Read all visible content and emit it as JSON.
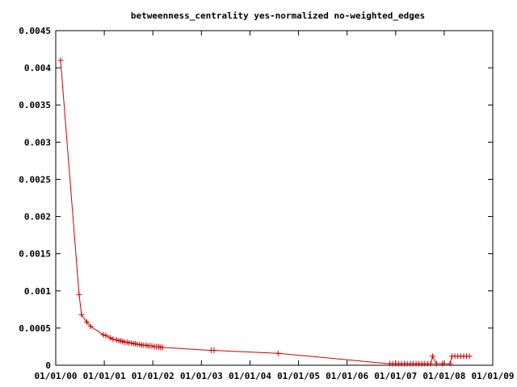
{
  "chart_data": {
    "type": "line",
    "title": "betweenness_centrality yes-normalized no-weighted_edges",
    "xlabel": "",
    "ylabel": "",
    "x_tick_labels": [
      "01/01/00",
      "01/01/01",
      "01/01/02",
      "01/01/03",
      "01/01/04",
      "01/01/05",
      "01/01/06",
      "01/01/07",
      "01/01/08",
      "01/01/09"
    ],
    "y_tick_labels": [
      "0",
      "0.0005",
      "0.001",
      "0.0015",
      "0.002",
      "0.0025",
      "0.003",
      "0.0035",
      "0.004",
      "0.0045"
    ],
    "xlim": [
      0,
      9
    ],
    "ylim": [
      0,
      0.0045
    ],
    "x_unit": "years since 01/01/00",
    "grid": false,
    "legend": "none",
    "series_color": "#cc0000",
    "series": [
      {
        "name": "",
        "x": [
          0.1,
          0.48,
          0.53,
          0.64,
          0.72,
          0.98,
          1.03,
          1.12,
          1.18,
          1.25,
          1.3,
          1.34,
          1.38,
          1.42,
          1.47,
          1.51,
          1.56,
          1.6,
          1.64,
          1.68,
          1.73,
          1.77,
          1.81,
          1.86,
          1.9,
          1.94,
          1.98,
          2.03,
          2.07,
          2.12,
          2.16,
          2.2,
          3.2,
          3.26,
          4.58,
          6.88,
          6.94,
          7.0,
          7.06,
          7.12,
          7.18,
          7.24,
          7.3,
          7.36,
          7.42,
          7.48,
          7.54,
          7.6,
          7.66,
          7.72,
          7.76,
          7.84,
          7.96,
          8.12,
          8.16,
          8.22,
          8.28,
          8.34,
          8.4,
          8.46,
          8.52
        ],
        "y": [
          0.0041,
          0.00095,
          0.00068,
          0.00058,
          0.00052,
          0.00041,
          0.0004,
          0.00037,
          0.00035,
          0.00034,
          0.00033,
          0.00033,
          0.00032,
          0.00031,
          0.00031,
          0.0003,
          0.0003,
          0.00029,
          0.00029,
          0.00028,
          0.00028,
          0.00027,
          0.00027,
          0.00027,
          0.00026,
          0.00026,
          0.00026,
          0.00025,
          0.00025,
          0.00025,
          0.00024,
          0.00024,
          0.0002,
          0.0002,
          0.00016,
          2e-05,
          2e-05,
          2e-05,
          2e-05,
          2e-05,
          2e-05,
          2e-05,
          2e-05,
          2e-05,
          2e-05,
          2e-05,
          2e-05,
          2e-05,
          2e-05,
          2e-05,
          0.00012,
          2e-05,
          2e-05,
          2e-05,
          0.00012,
          0.00012,
          0.00012,
          0.00012,
          0.00012,
          0.00012,
          0.00012
        ]
      }
    ]
  }
}
